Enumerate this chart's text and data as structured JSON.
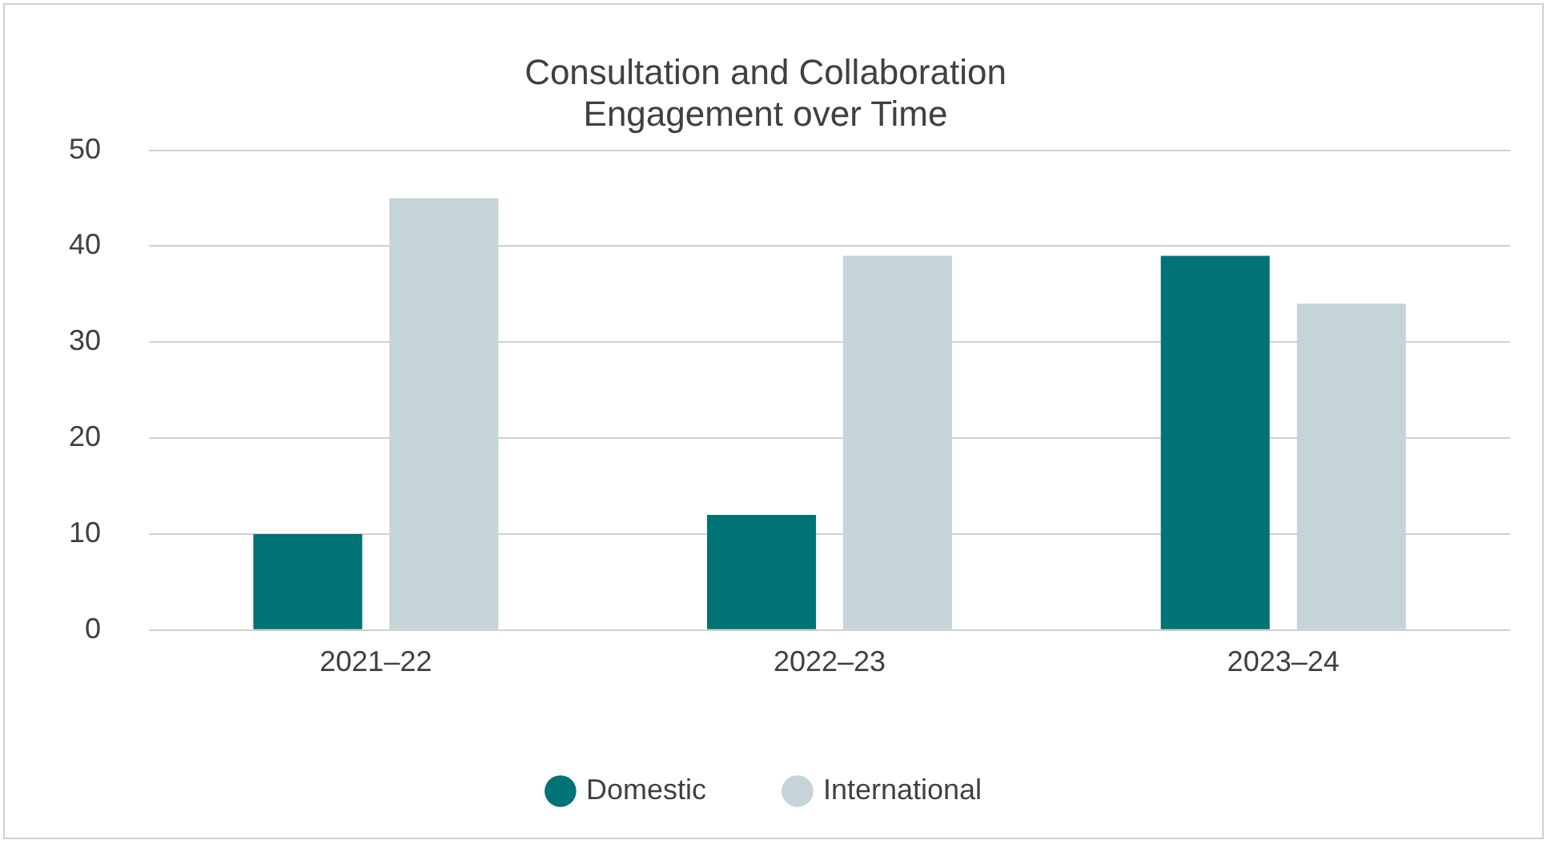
{
  "chart_data": {
    "type": "bar",
    "title": "Consultation and Collaboration\nEngagement over Time",
    "categories": [
      "2021–22",
      "2022–23",
      "2023–24"
    ],
    "series": [
      {
        "name": "Domestic",
        "color": "#007377",
        "values": [
          10,
          12,
          39
        ]
      },
      {
        "name": "International",
        "color": "#c4d4d8",
        "values": [
          45,
          39,
          34
        ]
      }
    ],
    "ylim": [
      0,
      50
    ],
    "yticks": [
      0,
      10,
      20,
      30,
      40,
      50
    ],
    "grid": "y",
    "legend": "bottom"
  }
}
